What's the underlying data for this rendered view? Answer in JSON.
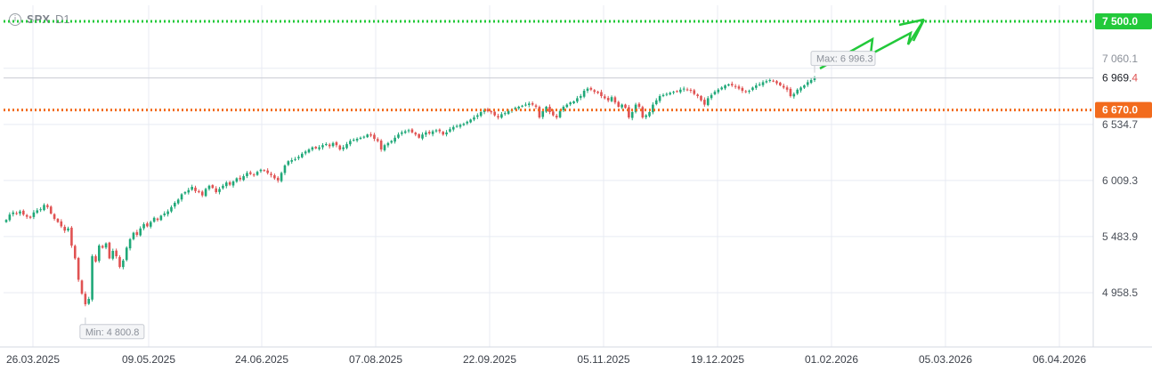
{
  "header": {
    "symbol": "SPX",
    "timeframe": "D1",
    "info_icon": "info-icon"
  },
  "colors": {
    "up": "#1fa878",
    "down": "#e05252",
    "target": "#22c93a",
    "support": "#f26b1d",
    "grid": "#e8ebf3"
  },
  "chart_data": {
    "type": "candlestick",
    "x_tick_labels": [
      "26.03.2025",
      "09.05.2025",
      "24.06.2025",
      "07.08.2025",
      "22.09.2025",
      "05.11.2025",
      "19.12.2025",
      "01.02.2026",
      "05.03.2026",
      "06.04.2026"
    ],
    "y_tick_labels": [
      "7 060.1",
      "6 534.7",
      "6 009.3",
      "5 483.9",
      "4 958.5"
    ],
    "ylim": [
      4450,
      7650
    ],
    "last_price": {
      "integer": "6 969.",
      "last_digit": "4",
      "value": 6969.4
    },
    "levels": [
      {
        "label": "7 500.0",
        "value": 7500.0,
        "color": "#22c93a"
      },
      {
        "label": "6 670.0",
        "value": 6670.0,
        "color": "#f26b1d"
      }
    ],
    "max_label": "Max: 6 996.3",
    "min_label": "Min: 4 800.8",
    "closes": [
      5640,
      5690,
      5710,
      5700,
      5720,
      5690,
      5670,
      5660,
      5710,
      5730,
      5740,
      5780,
      5760,
      5700,
      5650,
      5620,
      5580,
      5540,
      5560,
      5400,
      5280,
      5080,
      4950,
      4850,
      4900,
      5300,
      5250,
      5400,
      5380,
      5420,
      5280,
      5350,
      5300,
      5200,
      5260,
      5380,
      5460,
      5520,
      5500,
      5560,
      5600,
      5580,
      5620,
      5660,
      5640,
      5680,
      5700,
      5720,
      5760,
      5800,
      5830,
      5880,
      5900,
      5920,
      5950,
      5910,
      5900,
      5870,
      5930,
      5960,
      5940,
      5900,
      5930,
      5960,
      5990,
      5970,
      6000,
      6030,
      6020,
      6050,
      6080,
      6070,
      6060,
      6090,
      6110,
      6100,
      6080,
      6060,
      6030,
      6010,
      6080,
      6150,
      6190,
      6200,
      6210,
      6230,
      6260,
      6280,
      6300,
      6320,
      6310,
      6320,
      6340,
      6350,
      6330,
      6360,
      6340,
      6300,
      6320,
      6350,
      6380,
      6390,
      6400,
      6410,
      6420,
      6440,
      6430,
      6400,
      6380,
      6300,
      6340,
      6360,
      6380,
      6410,
      6440,
      6460,
      6470,
      6480,
      6460,
      6440,
      6410,
      6440,
      6460,
      6450,
      6470,
      6480,
      6470,
      6440,
      6460,
      6490,
      6510,
      6520,
      6530,
      6540,
      6560,
      6580,
      6600,
      6620,
      6650,
      6670,
      6660,
      6650,
      6620,
      6600,
      6630,
      6640,
      6660,
      6670,
      6690,
      6700,
      6710,
      6720,
      6730,
      6720,
      6700,
      6600,
      6660,
      6700,
      6650,
      6620,
      6600,
      6660,
      6700,
      6720,
      6740,
      6750,
      6780,
      6800,
      6850,
      6870,
      6860,
      6840,
      6830,
      6800,
      6780,
      6760,
      6790,
      6740,
      6700,
      6720,
      6690,
      6600,
      6650,
      6720,
      6700,
      6600,
      6620,
      6650,
      6720,
      6760,
      6800,
      6810,
      6820,
      6830,
      6840,
      6840,
      6860,
      6870,
      6860,
      6850,
      6820,
      6800,
      6760,
      6720,
      6780,
      6810,
      6840,
      6860,
      6880,
      6900,
      6910,
      6900,
      6890,
      6870,
      6850,
      6840,
      6850,
      6880,
      6900,
      6910,
      6930,
      6940,
      6950,
      6940,
      6920,
      6900,
      6880,
      6860,
      6800,
      6820,
      6860,
      6880,
      6900,
      6930,
      6950,
      6969.4
    ]
  }
}
